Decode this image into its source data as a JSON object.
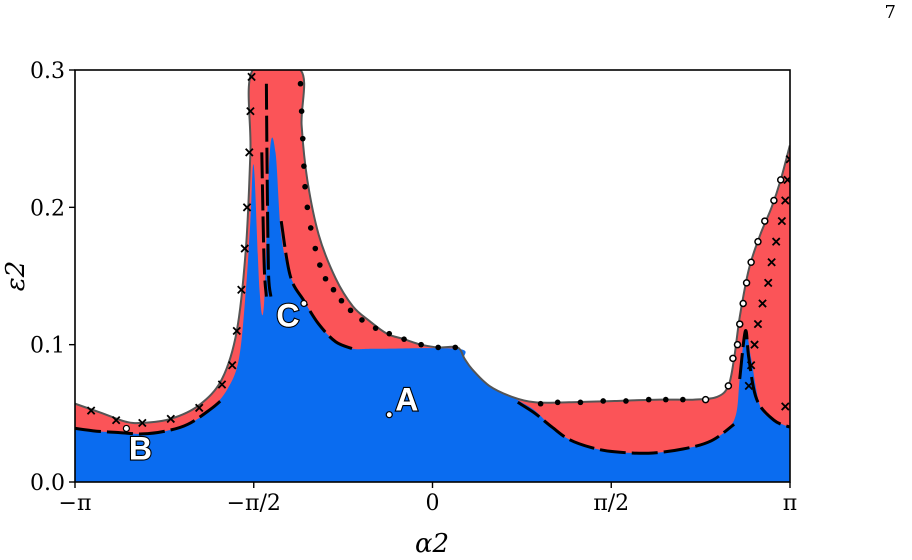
{
  "page_number": "7",
  "chart_data": {
    "type": "area",
    "xlabel": "α2",
    "ylabel": "ε2",
    "xlim": [
      -3.14159,
      3.14159
    ],
    "ylim": [
      0,
      0.3
    ],
    "x_ticks": [
      {
        "value": -3.14159,
        "label": "−π"
      },
      {
        "value": -1.5708,
        "label": "−π/2"
      },
      {
        "value": 0,
        "label": "0"
      },
      {
        "value": 1.5708,
        "label": "π/2"
      },
      {
        "value": 3.14159,
        "label": "π"
      }
    ],
    "y_ticks": [
      {
        "value": 0.0,
        "label": "0.0"
      },
      {
        "value": 0.1,
        "label": "0.1"
      },
      {
        "value": 0.2,
        "label": "0.2"
      },
      {
        "value": 0.3,
        "label": "0.3"
      }
    ],
    "colors": {
      "blue": "#0a6cf0",
      "red": "#fb5458",
      "boundary": "#555555"
    },
    "regions": {
      "red_upper_boundary": [
        [
          -3.14,
          0.057
        ],
        [
          -2.9,
          0.05
        ],
        [
          -2.7,
          0.044
        ],
        [
          -2.55,
          0.043
        ],
        [
          -2.3,
          0.046
        ],
        [
          -2.05,
          0.056
        ],
        [
          -1.85,
          0.075
        ],
        [
          -1.72,
          0.11
        ],
        [
          -1.64,
          0.17
        ],
        [
          -1.6,
          0.24
        ],
        [
          -1.58,
          0.3
        ],
        [
          -1.16,
          0.3
        ],
        [
          -1.15,
          0.26
        ],
        [
          -1.1,
          0.22
        ],
        [
          -1.0,
          0.18
        ],
        [
          -0.85,
          0.148
        ],
        [
          -0.7,
          0.128
        ],
        [
          -0.55,
          0.117
        ],
        [
          -0.4,
          0.108
        ],
        [
          -0.25,
          0.104
        ],
        [
          -0.1,
          0.1
        ],
        [
          0.05,
          0.098
        ],
        [
          0.22,
          0.098
        ],
        [
          0.28,
          0.09
        ],
        [
          0.35,
          0.082
        ],
        [
          0.5,
          0.07
        ],
        [
          0.7,
          0.062
        ],
        [
          0.9,
          0.058
        ],
        [
          1.2,
          0.058
        ],
        [
          1.6,
          0.059
        ],
        [
          2.0,
          0.06
        ],
        [
          2.3,
          0.06
        ],
        [
          2.5,
          0.062
        ],
        [
          2.6,
          0.07
        ],
        [
          2.65,
          0.09
        ],
        [
          2.7,
          0.12
        ],
        [
          2.78,
          0.155
        ],
        [
          2.88,
          0.18
        ],
        [
          2.98,
          0.2
        ],
        [
          3.06,
          0.22
        ],
        [
          3.14,
          0.245
        ]
      ],
      "blue_upper_boundary": [
        [
          -3.14,
          0.039
        ],
        [
          -2.95,
          0.037
        ],
        [
          -2.75,
          0.036
        ],
        [
          -2.55,
          0.035
        ],
        [
          -2.35,
          0.037
        ],
        [
          -2.15,
          0.042
        ],
        [
          -1.95,
          0.053
        ],
        [
          -1.8,
          0.068
        ],
        [
          -1.7,
          0.09
        ],
        [
          -1.64,
          0.14
        ],
        [
          -1.6,
          0.19
        ],
        [
          -1.57,
          0.23
        ],
        [
          -1.52,
          0.14
        ],
        [
          -1.48,
          0.13
        ],
        [
          -1.43,
          0.24
        ],
        [
          -1.38,
          0.24
        ],
        [
          -1.33,
          0.18
        ],
        [
          -1.25,
          0.15
        ],
        [
          -1.13,
          0.132
        ],
        [
          -1.0,
          0.115
        ],
        [
          -0.85,
          0.102
        ],
        [
          -0.7,
          0.097
        ],
        [
          -0.5,
          0.097
        ],
        [
          0.22,
          0.097
        ],
        [
          0.28,
          0.09
        ],
        [
          0.35,
          0.082
        ],
        [
          0.5,
          0.07
        ],
        [
          0.7,
          0.062
        ],
        [
          0.78,
          0.058
        ],
        [
          0.9,
          0.052
        ],
        [
          1.05,
          0.04
        ],
        [
          1.2,
          0.031
        ],
        [
          1.4,
          0.025
        ],
        [
          1.6,
          0.022
        ],
        [
          1.9,
          0.021
        ],
        [
          2.2,
          0.024
        ],
        [
          2.45,
          0.03
        ],
        [
          2.65,
          0.045
        ],
        [
          2.7,
          0.075
        ],
        [
          2.75,
          0.11
        ],
        [
          2.8,
          0.09
        ],
        [
          2.88,
          0.055
        ],
        [
          3.0,
          0.045
        ],
        [
          3.14,
          0.04
        ]
      ]
    },
    "dashed_curves": [
      [
        [
          -3.14,
          0.039
        ],
        [
          -2.95,
          0.037
        ],
        [
          -2.75,
          0.036
        ],
        [
          -2.55,
          0.035
        ],
        [
          -2.35,
          0.037
        ],
        [
          -2.15,
          0.042
        ],
        [
          -1.95,
          0.053
        ],
        [
          -1.85,
          0.06
        ]
      ],
      [
        [
          -1.46,
          0.29
        ],
        [
          -1.45,
          0.2
        ],
        [
          -1.44,
          0.15
        ],
        [
          -1.42,
          0.135
        ]
      ],
      [
        [
          -1.5,
          0.24
        ],
        [
          -1.48,
          0.16
        ],
        [
          -1.46,
          0.135
        ]
      ],
      [
        [
          -1.33,
          0.19
        ],
        [
          -1.25,
          0.15
        ],
        [
          -1.13,
          0.132
        ],
        [
          -1.0,
          0.115
        ],
        [
          -0.85,
          0.102
        ],
        [
          -0.7,
          0.097
        ]
      ],
      [
        [
          0.75,
          0.058
        ],
        [
          0.9,
          0.05
        ],
        [
          1.05,
          0.04
        ],
        [
          1.2,
          0.031
        ],
        [
          1.4,
          0.025
        ],
        [
          1.6,
          0.022
        ],
        [
          1.9,
          0.021
        ],
        [
          2.2,
          0.024
        ],
        [
          2.45,
          0.03
        ],
        [
          2.65,
          0.042
        ]
      ],
      [
        [
          2.7,
          0.075
        ],
        [
          2.75,
          0.11
        ],
        [
          2.78,
          0.09
        ],
        [
          2.85,
          0.06
        ],
        [
          3.0,
          0.045
        ],
        [
          3.14,
          0.04
        ]
      ]
    ],
    "markers": {
      "crosses": [
        [
          -3.0,
          0.052
        ],
        [
          -2.78,
          0.045
        ],
        [
          -2.55,
          0.043
        ],
        [
          -2.3,
          0.046
        ],
        [
          -2.05,
          0.054
        ],
        [
          -1.85,
          0.071
        ],
        [
          -1.76,
          0.085
        ],
        [
          -1.72,
          0.11
        ],
        [
          -1.68,
          0.14
        ],
        [
          -1.65,
          0.17
        ],
        [
          -1.63,
          0.2
        ],
        [
          -1.61,
          0.24
        ],
        [
          -1.6,
          0.27
        ],
        [
          -1.59,
          0.295
        ],
        [
          3.14,
          0.235
        ],
        [
          3.12,
          0.22
        ],
        [
          3.1,
          0.205
        ],
        [
          3.07,
          0.19
        ],
        [
          3.02,
          0.175
        ],
        [
          2.98,
          0.16
        ],
        [
          2.95,
          0.145
        ],
        [
          2.9,
          0.13
        ],
        [
          2.86,
          0.115
        ],
        [
          2.83,
          0.1
        ],
        [
          2.8,
          0.085
        ],
        [
          2.78,
          0.07
        ],
        [
          3.1,
          0.055
        ]
      ],
      "dots": [
        [
          -1.16,
          0.29
        ],
        [
          -1.15,
          0.27
        ],
        [
          -1.14,
          0.25
        ],
        [
          -1.13,
          0.23
        ],
        [
          -1.12,
          0.215
        ],
        [
          -1.1,
          0.2
        ],
        [
          -1.07,
          0.185
        ],
        [
          -1.03,
          0.17
        ],
        [
          -0.99,
          0.158
        ],
        [
          -0.94,
          0.148
        ],
        [
          -0.87,
          0.14
        ],
        [
          -0.8,
          0.132
        ],
        [
          -0.72,
          0.125
        ],
        [
          -0.62,
          0.118
        ],
        [
          -0.5,
          0.112
        ],
        [
          -0.38,
          0.108
        ],
        [
          -0.25,
          0.104
        ],
        [
          -0.1,
          0.1
        ],
        [
          0.05,
          0.098
        ],
        [
          0.2,
          0.098
        ],
        [
          0.95,
          0.057
        ],
        [
          1.1,
          0.058
        ],
        [
          1.3,
          0.058
        ],
        [
          1.5,
          0.059
        ],
        [
          1.7,
          0.059
        ],
        [
          1.9,
          0.06
        ],
        [
          2.05,
          0.06
        ],
        [
          2.2,
          0.06
        ]
      ],
      "open_circles": [
        [
          2.4,
          0.06
        ],
        [
          2.6,
          0.07
        ],
        [
          2.64,
          0.09
        ],
        [
          2.68,
          0.1
        ],
        [
          2.7,
          0.115
        ],
        [
          2.73,
          0.13
        ],
        [
          2.76,
          0.145
        ],
        [
          2.8,
          0.16
        ],
        [
          2.86,
          0.175
        ],
        [
          2.92,
          0.19
        ],
        [
          3.0,
          0.205
        ],
        [
          3.06,
          0.22
        ]
      ]
    },
    "labeled_points": [
      {
        "label": "A",
        "x": -0.38,
        "y": 0.049
      },
      {
        "label": "B",
        "x": -2.69,
        "y": 0.039
      },
      {
        "label": "C",
        "x": -1.13,
        "y": 0.13
      }
    ]
  }
}
